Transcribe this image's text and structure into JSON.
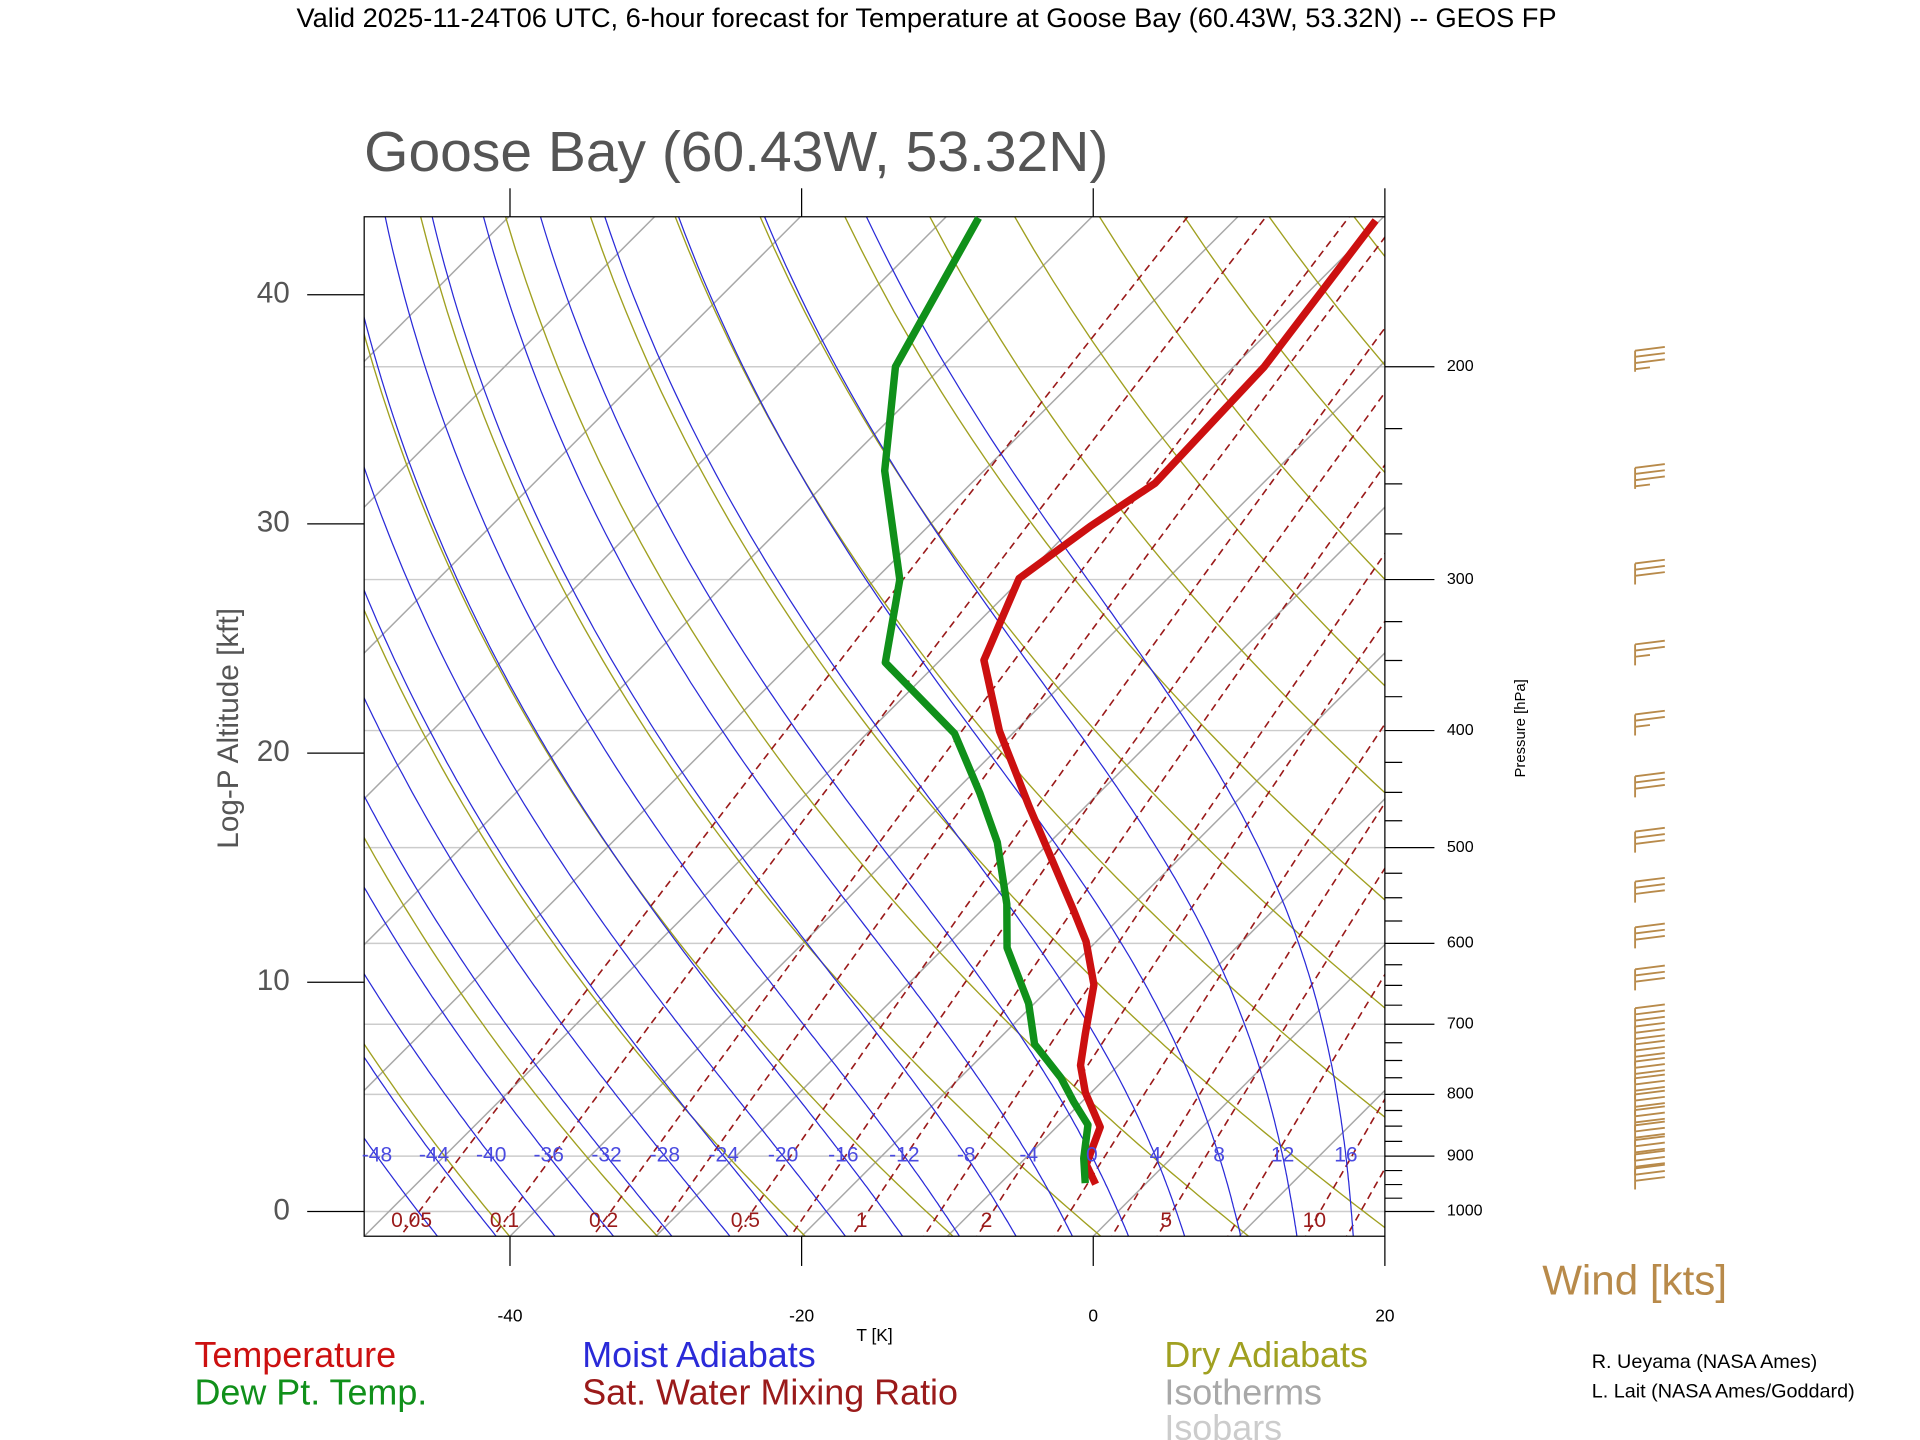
{
  "chart_data": {
    "type": "skewt",
    "title": "Valid 2025-11-24T06 UTC, 6-hour forecast for Temperature at Goose Bay (60.43W, 53.32N) -- GEOS FP",
    "subtitle": "Goose Bay (60.43W, 53.32N)",
    "xlabel": "T [K]",
    "ylabel": "Log-P Altitude [kft]",
    "y2label": "Pressure [hPa]",
    "xlim": [
      -50,
      20
    ],
    "xticks": [
      -40,
      -20,
      0,
      20
    ],
    "ylim": [
      -1.08,
      43.4
    ],
    "yticks": [
      0,
      10,
      20,
      30,
      40
    ],
    "y2ticks": [
      200,
      300,
      400,
      500,
      600,
      700,
      800,
      900,
      1000
    ],
    "y2minorticks": [
      225,
      250,
      275,
      325,
      350,
      375,
      425,
      450,
      475,
      525,
      550,
      575,
      625,
      650,
      675,
      725,
      750,
      775,
      825,
      850,
      875,
      925,
      950,
      975
    ],
    "series": [
      {
        "name": "Temperature",
        "color": "#cc1010",
        "values": [
          -3.4,
          -5.4,
          -7.0,
          -10.4,
          -12.6,
          -14.4,
          -17.2,
          -20.7,
          -23.7,
          -34.0,
          -41.1,
          -47.0,
          -50.2,
          -48.9,
          -47.4,
          -47.9,
          -50.3
        ],
        "altitudes": [
          1.19,
          2.05,
          3.68,
          5.19,
          6.38,
          7.73,
          9.89,
          11.78,
          13.14,
          17.73,
          20.97,
          24.05,
          27.62,
          29.89,
          31.78,
          36.86,
          43.24
        ]
      },
      {
        "name": "Dew Pt. Temp.",
        "color": "#10901a",
        "values": [
          -4.2,
          -6.0,
          -8.0,
          -10.5,
          -13.1,
          -17.2,
          -20.4,
          -25.7,
          -28.7,
          -33.6,
          -38.2,
          -44.0,
          -53.6,
          -58.3,
          -66.8,
          -73.2,
          -77.7
        ],
        "altitudes": [
          1.24,
          2.32,
          3.78,
          4.76,
          5.84,
          7.3,
          9.08,
          11.51,
          13.41,
          16.11,
          18.27,
          20.86,
          23.95,
          27.57,
          32.32,
          36.86,
          43.35
        ]
      }
    ],
    "moist_adiabats": {
      "name": "Moist Adiabats",
      "color": "#2a2ad8",
      "values": [
        -48,
        -44,
        -40,
        -36,
        -32,
        -28,
        -24,
        -20,
        -16,
        -12,
        -8,
        -4,
        0,
        4,
        8,
        12,
        16
      ]
    },
    "mixing_ratio": {
      "name": "Sat. Water Mixing Ratio",
      "color": "#9a1a1a",
      "values": [
        0.05,
        0.1,
        0.2,
        0.3,
        0.5,
        0.7,
        1,
        1.5,
        2,
        3,
        4,
        5,
        7,
        10,
        12,
        15,
        20
      ],
      "labels": [
        0.05,
        0.1,
        0.2,
        0.5,
        1,
        2,
        5,
        10
      ]
    },
    "dry_adiabats": {
      "name": "Dry Adiabats",
      "color": "#a0a020",
      "values": [
        230,
        240,
        250,
        260,
        270,
        280,
        290,
        300,
        310,
        320,
        330,
        340,
        350,
        360,
        370,
        380,
        390,
        400,
        410,
        420,
        430,
        440,
        450,
        460,
        470,
        480
      ]
    },
    "isotherms": {
      "name": "Isotherms",
      "color": "#a8a8a8",
      "values": [
        -120,
        -110,
        -100,
        -90,
        -80,
        -70,
        -60,
        -50,
        -40,
        -30,
        -20,
        -10,
        0,
        10,
        20,
        30,
        40
      ]
    },
    "isobars": {
      "name": "Isobars",
      "color": "#cccccc"
    },
    "wind": {
      "name": "Wind [kts]",
      "color": "#b88a4a",
      "pressures": [
        200,
        250,
        300,
        350,
        400,
        450,
        500,
        550,
        600,
        650,
        700,
        725,
        750,
        775,
        800,
        825,
        850,
        875,
        900,
        925,
        950
      ],
      "speeds": [
        35,
        35,
        30,
        25,
        25,
        30,
        30,
        30,
        30,
        30,
        30,
        30,
        30,
        30,
        30,
        30,
        30,
        30,
        30,
        30,
        30
      ]
    },
    "credits": [
      "R. Ueyama (NASA Ames)",
      "L. Lait (NASA Ames/Goddard)"
    ]
  }
}
